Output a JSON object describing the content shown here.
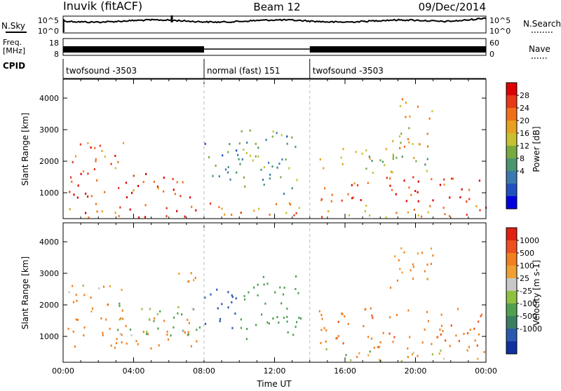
{
  "header": {
    "title": "Inuvik (fitACF)",
    "beam": "Beam 12",
    "date": "09/Dec/2014"
  },
  "top_panels": {
    "nsky_label": "N.Sky",
    "nsearch_label": "N.Search",
    "noise_ticks_left": [
      "10^5",
      "10^0"
    ],
    "noise_ticks_right": [
      "10^5",
      "10^0"
    ],
    "freq_label": [
      "Freq.",
      "[MHz]"
    ],
    "freq_ticks": [
      "18",
      "8"
    ],
    "nave_label": "Nave",
    "nave_ticks": [
      "60",
      "0"
    ],
    "cpid_label": "CPID"
  },
  "chart_data": [
    {
      "type": "heatmap",
      "panel": "cpid",
      "segments": [
        {
          "name": "twofsound -3503",
          "start": "00:00",
          "end": "08:00"
        },
        {
          "name": "normal (fast) 151",
          "start": "08:00",
          "end": "14:00"
        },
        {
          "name": "twofsound -3503",
          "start": "14:00",
          "end": "24:00"
        }
      ]
    },
    {
      "type": "heatmap",
      "panel": "power",
      "ylabel": "Slant Range [km]",
      "xlabel": "Time UT",
      "xlim": [
        "00:00",
        "24:00"
      ],
      "ylim": [
        180,
        4600
      ],
      "x_ticks": [
        "00:00",
        "04:00",
        "08:00",
        "12:00",
        "16:00",
        "20:00",
        "00:00"
      ],
      "y_ticks": [
        1000,
        2000,
        3000,
        4000
      ],
      "colorbar_label": "Power [dB]",
      "colorbar_ticks": [
        "28",
        "24",
        "20",
        "16",
        "12",
        "8",
        "4"
      ],
      "colorbar_colors": [
        "#0000e0",
        "#2050c0",
        "#3a7ab0",
        "#4a9470",
        "#78aa40",
        "#c8c030",
        "#e8a020",
        "#f07018",
        "#e83818",
        "#dd0000"
      ],
      "clusters": [
        {
          "t0": 0.2,
          "t1": 7.8,
          "r0": 800,
          "r1": 1600,
          "power": 28
        },
        {
          "t0": 0.2,
          "t1": 3.5,
          "r0": 1600,
          "r1": 2600,
          "power": 24
        },
        {
          "t0": 0.2,
          "t1": 7.8,
          "r0": 200,
          "r1": 650,
          "power": 26
        },
        {
          "t0": 8.2,
          "t1": 14.0,
          "r0": 200,
          "r1": 700,
          "power": 22
        },
        {
          "t0": 8.0,
          "t1": 10.0,
          "r0": 1100,
          "r1": 2600,
          "power": 10
        },
        {
          "t0": 10.0,
          "t1": 13.5,
          "r0": 900,
          "r1": 3000,
          "power": 12
        },
        {
          "t0": 14.5,
          "t1": 24.0,
          "r0": 700,
          "r1": 1500,
          "power": 28
        },
        {
          "t0": 14.5,
          "t1": 24.0,
          "r0": 200,
          "r1": 600,
          "power": 22
        },
        {
          "t0": 14.5,
          "t1": 21.0,
          "r0": 1600,
          "r1": 2400,
          "power": 16
        },
        {
          "t0": 18.5,
          "t1": 21.0,
          "r0": 2400,
          "r1": 4000,
          "power": 20
        }
      ]
    },
    {
      "type": "heatmap",
      "panel": "velocity",
      "ylabel": "Slant Range [km]",
      "xlabel": "Time UT",
      "xlim": [
        "00:00",
        "24:00"
      ],
      "ylim": [
        180,
        4600
      ],
      "x_ticks": [
        "00:00",
        "04:00",
        "08:00",
        "12:00",
        "16:00",
        "20:00",
        "00:00"
      ],
      "y_ticks": [
        1000,
        2000,
        3000,
        4000
      ],
      "colorbar_label": "Velocity [m s-1]",
      "colorbar_ticks": [
        "1000",
        "500",
        "100",
        "25",
        "-25",
        "-100",
        "-500",
        "-1000"
      ],
      "colorbar_colors": [
        "#1030a0",
        "#2a5ab0",
        "#3a8060",
        "#50a050",
        "#90c040",
        "#c8c8c8",
        "#f0a030",
        "#f08020",
        "#ee5020",
        "#e02010"
      ],
      "clusters": [
        {
          "t0": 0.2,
          "t1": 7.8,
          "r0": 600,
          "r1": 1600,
          "vel": -300
        },
        {
          "t0": 3.0,
          "t1": 7.8,
          "r0": 1000,
          "r1": 2100,
          "vel": 200
        },
        {
          "t0": 0.2,
          "t1": 3.5,
          "r0": 1700,
          "r1": 2600,
          "vel": -150
        },
        {
          "t0": 5.0,
          "t1": 7.5,
          "r0": 2700,
          "r1": 3100,
          "vel": 0
        },
        {
          "t0": 8.0,
          "t1": 10.0,
          "r0": 1200,
          "r1": 2600,
          "vel": 800
        },
        {
          "t0": 10.0,
          "t1": 13.5,
          "r0": 900,
          "r1": 2900,
          "vel": 300
        },
        {
          "t0": 14.5,
          "t1": 24.0,
          "r0": 600,
          "r1": 1900,
          "vel": -400
        },
        {
          "t0": 14.5,
          "t1": 24.0,
          "r0": 200,
          "r1": 600,
          "vel": 50
        },
        {
          "t0": 18.5,
          "t1": 21.0,
          "r0": 2400,
          "r1": 3900,
          "vel": -200
        }
      ]
    }
  ]
}
